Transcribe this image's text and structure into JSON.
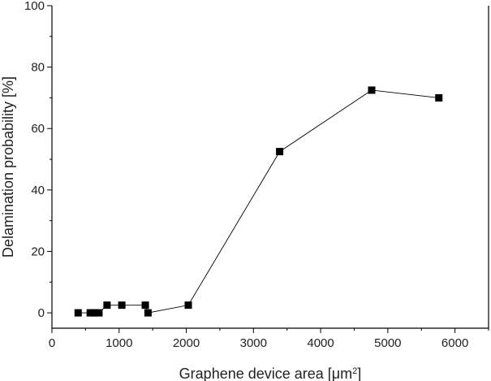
{
  "chart_data": {
    "type": "line",
    "title": "",
    "xlabel": "Graphene device area [μm",
    "xlabel_superscript": "2",
    "xlabel_suffix": "]",
    "ylabel": "Delamination probability [%]",
    "xlim": [
      0,
      6500
    ],
    "ylim": [
      -5,
      100
    ],
    "x_ticks": [
      0,
      1000,
      2000,
      3000,
      4000,
      5000,
      6000
    ],
    "y_ticks": [
      0,
      20,
      40,
      60,
      80,
      100
    ],
    "x_minor_step": 500,
    "y_minor_step": 10,
    "grid": false,
    "legend": "none",
    "marker": "square",
    "color": "#000000",
    "series": [
      {
        "x": [
          390,
          570,
          630,
          700,
          820,
          1040,
          1390,
          1430,
          2030,
          3390,
          4760,
          5760
        ],
        "y": [
          0,
          0,
          0,
          0,
          2.5,
          2.5,
          2.5,
          0,
          2.5,
          52.5,
          72.5,
          70
        ]
      }
    ]
  }
}
